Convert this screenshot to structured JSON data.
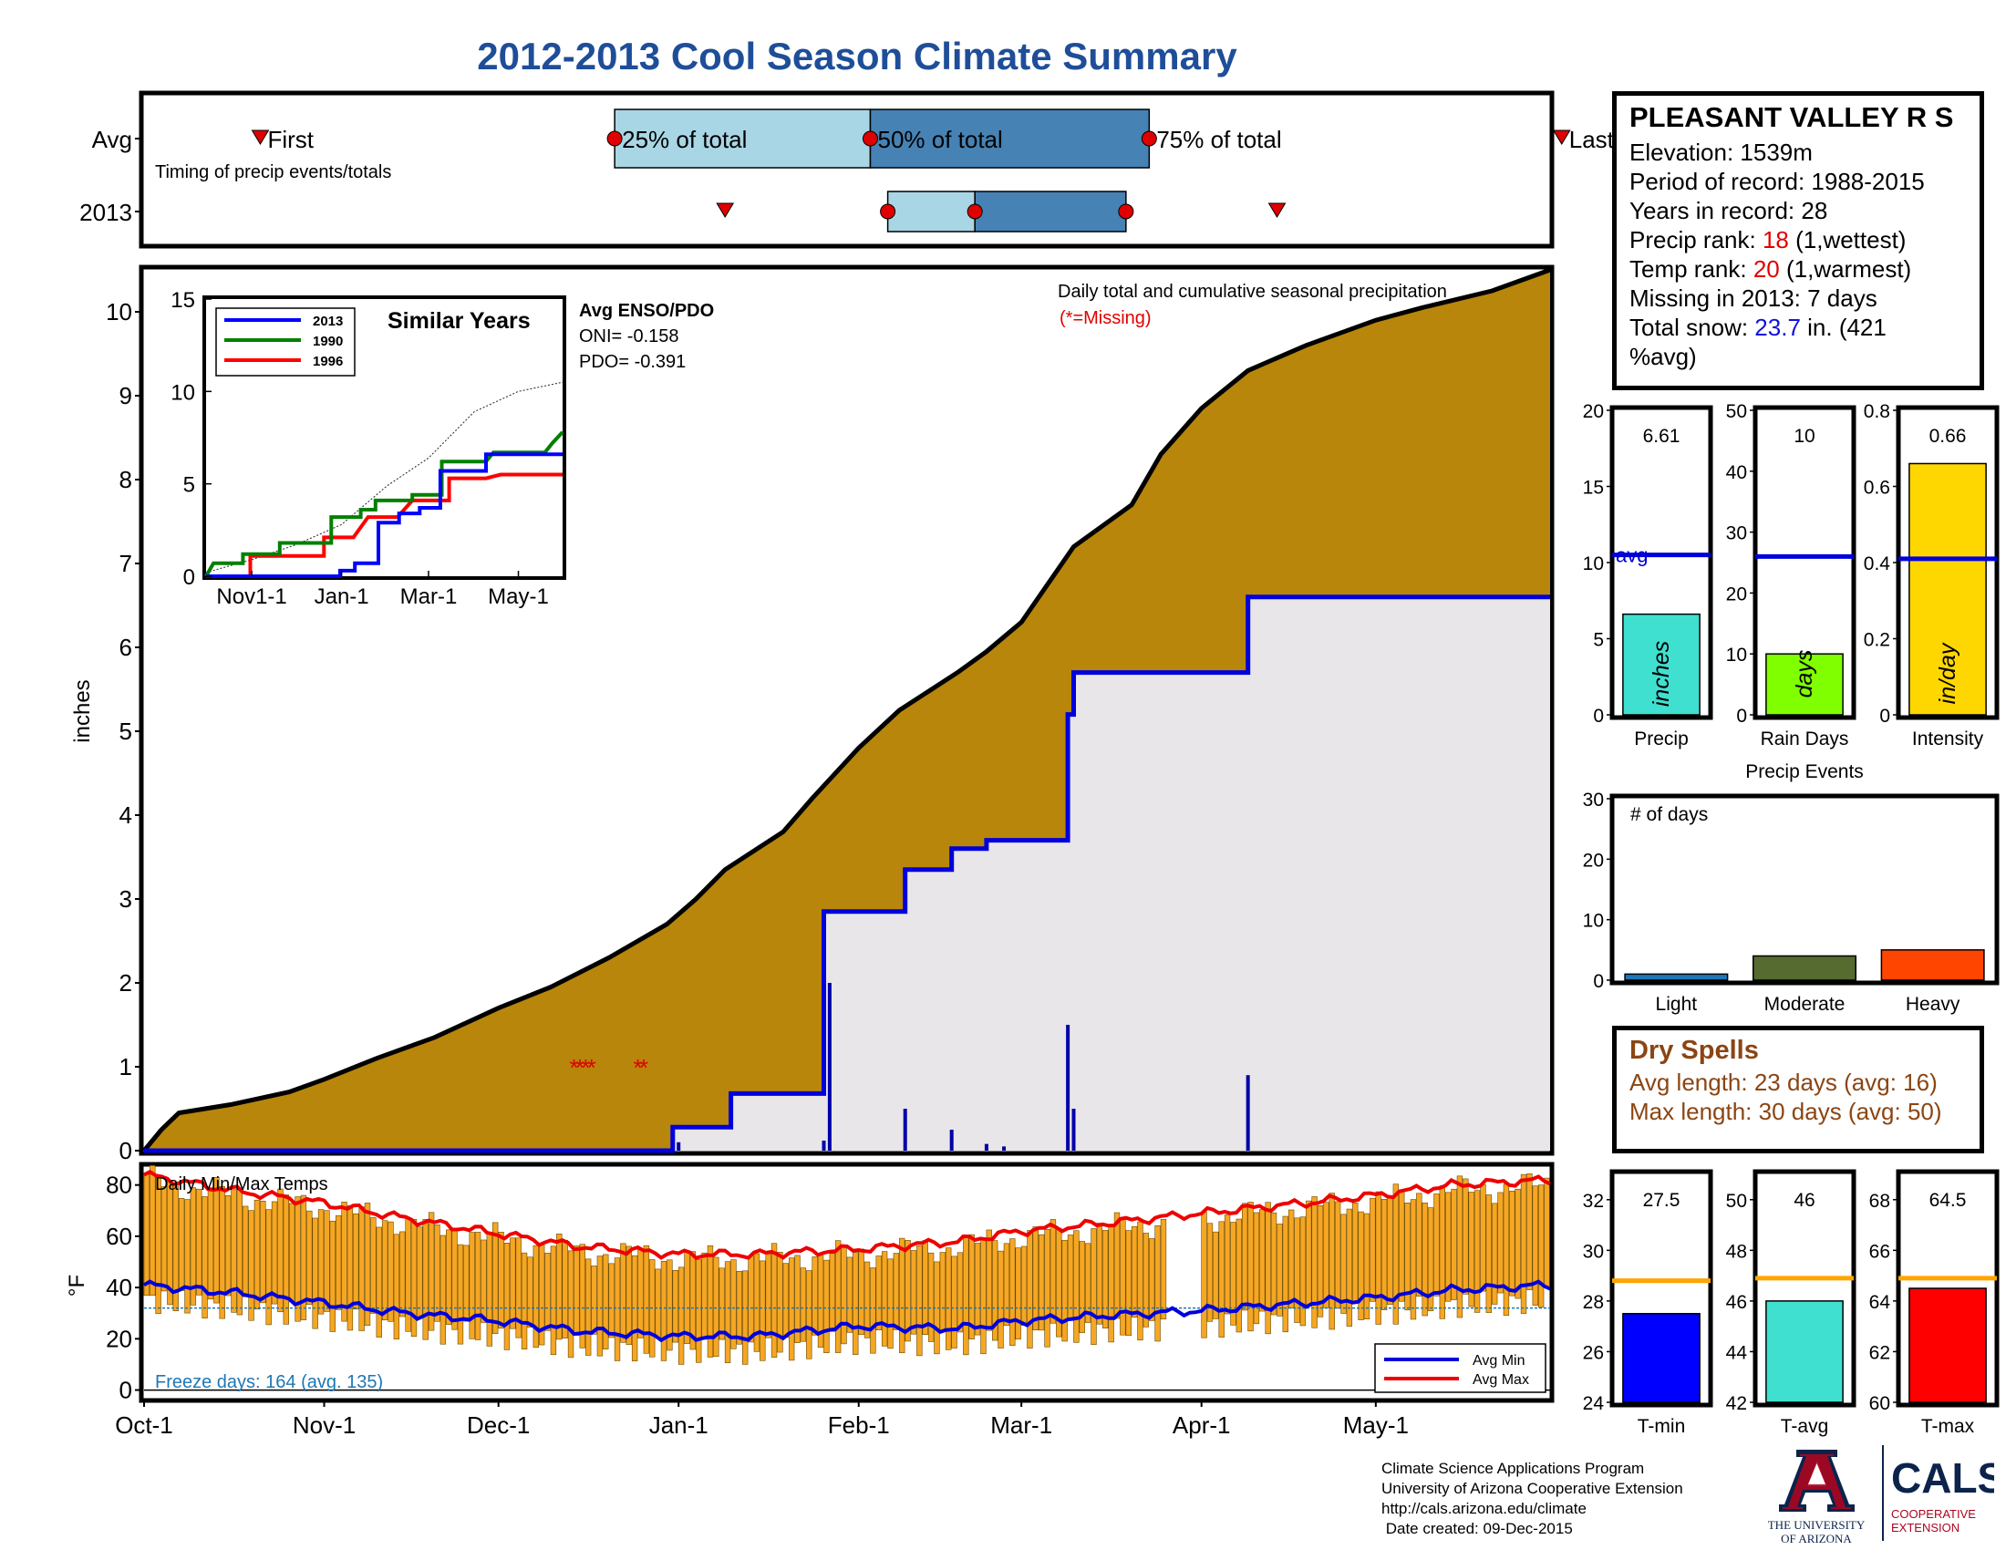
{
  "page": {
    "title": "2012-2013 Cool Season Climate Summary"
  },
  "timing_panel": {
    "row_labels": [
      "Avg",
      "2013"
    ],
    "markers_text": {
      "first": "First",
      "p25": "25% of total",
      "p50": "50% of total",
      "p75": "75% of total",
      "last": "Last"
    },
    "caption": "Timing of precip events/totals",
    "avg": {
      "first_day": 20,
      "p25_day": 81,
      "p50_day": 125,
      "p75_day": 173,
      "last_day": 244
    },
    "y2013": {
      "first_day": 100,
      "p25_day": 128,
      "p50_day": 143,
      "p75_day": 169,
      "last_day": 195
    },
    "colors": {
      "light": "#a9d6e5",
      "dark": "#4682b4",
      "dot": "#e00000",
      "triangle": "#e00000"
    }
  },
  "station": {
    "name": "PLEASANT VALLEY R S",
    "elevation": "Elevation: 1539m",
    "period": "Period of record: 1988-2015",
    "years": "Years in record: 28",
    "precip_rank_label": "Precip rank: ",
    "precip_rank_value": "18",
    "precip_rank_note": " (1,wettest)",
    "temp_rank_label": "Temp rank: ",
    "temp_rank_value": "20",
    "temp_rank_note": " (1,warmest)",
    "missing": "Missing in 2013: 7 days",
    "snow_label": "Total snow: ",
    "snow_value": "23.7",
    "snow_note_1": " in. (421",
    "snow_note_2": "%avg)"
  },
  "chart_data": [
    {
      "id": "cumulative-precip",
      "type": "area",
      "title": "Daily total and cumulative seasonal precipitation",
      "subtitle": "(*=Missing)",
      "ylabel": "inches",
      "ylim": [
        0,
        10.5
      ],
      "yticks": [
        0,
        1,
        2,
        3,
        4,
        5,
        6,
        7,
        8,
        9,
        10
      ],
      "x_tick_labels": [
        "Oct-1",
        "Nov-1",
        "Dec-1",
        "Jan-1",
        "Feb-1",
        "Mar-1",
        "Apr-1",
        "May-1"
      ],
      "x_tick_days": [
        0,
        31,
        61,
        92,
        123,
        151,
        182,
        212
      ],
      "x_range_days": [
        0,
        242
      ],
      "avg_cumulative": [
        [
          0,
          0
        ],
        [
          3,
          0.25
        ],
        [
          6,
          0.45
        ],
        [
          15,
          0.55
        ],
        [
          25,
          0.7
        ],
        [
          31,
          0.85
        ],
        [
          40,
          1.1
        ],
        [
          50,
          1.35
        ],
        [
          61,
          1.7
        ],
        [
          70,
          1.95
        ],
        [
          80,
          2.3
        ],
        [
          90,
          2.7
        ],
        [
          95,
          3.0
        ],
        [
          100,
          3.35
        ],
        [
          110,
          3.8
        ],
        [
          115,
          4.2
        ],
        [
          123,
          4.8
        ],
        [
          130,
          5.25
        ],
        [
          140,
          5.7
        ],
        [
          145,
          5.95
        ],
        [
          151,
          6.3
        ],
        [
          160,
          7.2
        ],
        [
          170,
          7.7
        ],
        [
          175,
          8.3
        ],
        [
          182,
          8.85
        ],
        [
          190,
          9.3
        ],
        [
          200,
          9.6
        ],
        [
          212,
          9.9
        ],
        [
          220,
          10.05
        ],
        [
          232,
          10.25
        ],
        [
          242,
          10.5
        ]
      ],
      "y2013_cumulative": [
        [
          0,
          0
        ],
        [
          91,
          0
        ],
        [
          91,
          0.28
        ],
        [
          101,
          0.28
        ],
        [
          101,
          0.68
        ],
        [
          117,
          0.68
        ],
        [
          117,
          2.85
        ],
        [
          131,
          2.85
        ],
        [
          131,
          3.35
        ],
        [
          139,
          3.35
        ],
        [
          139,
          3.6
        ],
        [
          145,
          3.6
        ],
        [
          145,
          3.7
        ],
        [
          159,
          3.7
        ],
        [
          159,
          5.2
        ],
        [
          160,
          5.2
        ],
        [
          160,
          5.7
        ],
        [
          190,
          5.7
        ],
        [
          190,
          6.6
        ],
        [
          242,
          6.6
        ]
      ],
      "daily_bars": [
        [
          92,
          0.1
        ],
        [
          117,
          0.12
        ],
        [
          118,
          2.0
        ],
        [
          131,
          0.5
        ],
        [
          139,
          0.25
        ],
        [
          145,
          0.08
        ],
        [
          148,
          0.05
        ],
        [
          159,
          1.5
        ],
        [
          160,
          0.5
        ],
        [
          190,
          0.9
        ]
      ],
      "missing_marks": [
        [
          74,
          1.0
        ],
        [
          75,
          1.0
        ],
        [
          76,
          1.0
        ],
        [
          77,
          1.0
        ],
        [
          85,
          1.0
        ],
        [
          86,
          1.0
        ]
      ],
      "colors": {
        "avg_fill": "#b8860b",
        "y2013_fill": "#e8e6e8",
        "y2013_line": "#0000dd"
      }
    },
    {
      "id": "similar-years",
      "type": "line",
      "title": "Similar Years",
      "ylim": [
        0,
        15
      ],
      "yticks": [
        0,
        5,
        10,
        15
      ],
      "x_tick_labels": [
        "Nov1-1",
        "Jan-1",
        "Mar-1",
        "May-1"
      ],
      "x_tick_days": [
        31,
        92,
        151,
        212
      ],
      "x_range_days": [
        0,
        242
      ],
      "series": [
        {
          "name": "2013",
          "color": "#0000ff",
          "points": [
            [
              0,
              0
            ],
            [
              91,
              0
            ],
            [
              91,
              0.3
            ],
            [
              101,
              0.3
            ],
            [
              101,
              0.7
            ],
            [
              117,
              0.7
            ],
            [
              117,
              2.9
            ],
            [
              131,
              2.9
            ],
            [
              131,
              3.4
            ],
            [
              145,
              3.4
            ],
            [
              145,
              3.7
            ],
            [
              159,
              3.7
            ],
            [
              159,
              5.7
            ],
            [
              190,
              5.7
            ],
            [
              190,
              6.6
            ],
            [
              242,
              6.6
            ]
          ]
        },
        {
          "name": "1990",
          "color": "#008000",
          "points": [
            [
              0,
              0
            ],
            [
              5,
              0.7
            ],
            [
              25,
              0.7
            ],
            [
              25,
              1.2
            ],
            [
              50,
              1.2
            ],
            [
              50,
              1.8
            ],
            [
              85,
              1.8
            ],
            [
              85,
              3.2
            ],
            [
              105,
              3.2
            ],
            [
              105,
              3.6
            ],
            [
              115,
              3.6
            ],
            [
              115,
              4.1
            ],
            [
              140,
              4.1
            ],
            [
              140,
              4.4
            ],
            [
              160,
              4.4
            ],
            [
              160,
              6.2
            ],
            [
              190,
              6.2
            ],
            [
              195,
              6.7
            ],
            [
              230,
              6.7
            ],
            [
              235,
              7.2
            ],
            [
              242,
              7.8
            ]
          ]
        },
        {
          "name": "1996",
          "color": "#ff0000",
          "points": [
            [
              0,
              0
            ],
            [
              30,
              0
            ],
            [
              30,
              1.1
            ],
            [
              80,
              1.1
            ],
            [
              80,
              2.1
            ],
            [
              100,
              2.1
            ],
            [
              110,
              3.2
            ],
            [
              130,
              3.2
            ],
            [
              140,
              4.1
            ],
            [
              165,
              4.1
            ],
            [
              165,
              5.3
            ],
            [
              190,
              5.3
            ],
            [
              200,
              5.5
            ],
            [
              242,
              5.5
            ]
          ]
        }
      ],
      "avg_series": {
        "name": "average",
        "color": "#222222",
        "points": [
          [
            0,
            0.2
          ],
          [
            31,
            0.9
          ],
          [
            61,
            1.7
          ],
          [
            92,
            2.8
          ],
          [
            123,
            4.9
          ],
          [
            151,
            6.4
          ],
          [
            182,
            8.9
          ],
          [
            212,
            10.0
          ],
          [
            242,
            10.5
          ]
        ]
      }
    },
    {
      "id": "daily-temps",
      "type": "bar",
      "title": "Daily Min/Max Temps",
      "ylabel": "°F",
      "ylim": [
        -3,
        87
      ],
      "yticks": [
        0,
        20,
        40,
        60,
        80
      ],
      "x_tick_labels": [
        "Oct-1",
        "Nov-1",
        "Dec-1",
        "Jan-1",
        "Feb-1",
        "Mar-1",
        "Apr-1",
        "May-1"
      ],
      "x_tick_days": [
        0,
        31,
        61,
        92,
        123,
        151,
        182,
        212
      ],
      "x_range_days": [
        0,
        242
      ],
      "freeze_line_value": 32,
      "avg_min_points": [
        [
          0,
          41
        ],
        [
          15,
          38
        ],
        [
          31,
          34
        ],
        [
          45,
          30
        ],
        [
          61,
          27
        ],
        [
          75,
          23
        ],
        [
          92,
          21
        ],
        [
          105,
          21
        ],
        [
          123,
          25
        ],
        [
          140,
          24
        ],
        [
          151,
          27
        ],
        [
          165,
          29
        ],
        [
          182,
          31
        ],
        [
          200,
          34
        ],
        [
          212,
          36
        ],
        [
          225,
          39
        ],
        [
          242,
          41
        ]
      ],
      "avg_max_points": [
        [
          0,
          84
        ],
        [
          15,
          78
        ],
        [
          31,
          73
        ],
        [
          45,
          67
        ],
        [
          61,
          61
        ],
        [
          75,
          56
        ],
        [
          92,
          53
        ],
        [
          105,
          53
        ],
        [
          123,
          55
        ],
        [
          140,
          58
        ],
        [
          151,
          62
        ],
        [
          165,
          65
        ],
        [
          182,
          69
        ],
        [
          200,
          73
        ],
        [
          212,
          76
        ],
        [
          225,
          80
        ],
        [
          242,
          82
        ]
      ],
      "legend": [
        "Avg Min",
        "Avg Max"
      ],
      "colors": {
        "bar": "#f5a623",
        "bar_edge": "#6b4a00",
        "avg_min": "#0000dd",
        "avg_max": "#ee0000",
        "freeze": "#1f77b4"
      }
    },
    {
      "id": "precip-total",
      "type": "bar",
      "ylim": [
        0,
        20
      ],
      "yticks": [
        0,
        5,
        10,
        15,
        20
      ],
      "categories": [
        "Precip"
      ],
      "values": [
        6.61
      ],
      "value_label": "6.61",
      "average": 10.5,
      "avg_label": "avg",
      "bar_text": "inches",
      "color": "#40e0d0"
    },
    {
      "id": "rain-days",
      "type": "bar",
      "ylim": [
        0,
        50
      ],
      "yticks": [
        0,
        10,
        20,
        30,
        40,
        50
      ],
      "categories": [
        "Rain Days"
      ],
      "values": [
        10
      ],
      "value_label": "10",
      "average": 26,
      "bar_text": "days",
      "color": "#80ff00"
    },
    {
      "id": "intensity",
      "type": "bar",
      "ylim": [
        0,
        0.8
      ],
      "yticks": [
        0,
        0.2,
        0.4,
        0.6,
        0.8
      ],
      "categories": [
        "Intensity"
      ],
      "values": [
        0.66
      ],
      "value_label": "0.66",
      "average": 0.41,
      "bar_text": "in/day",
      "color": "#ffd700"
    },
    {
      "id": "precip-events",
      "type": "bar",
      "title": "Precip Events",
      "note": "# of days",
      "ylim": [
        0,
        30
      ],
      "yticks": [
        0,
        10,
        20,
        30
      ],
      "categories": [
        "Light",
        "Moderate",
        "Heavy"
      ],
      "values": [
        1,
        4,
        5
      ],
      "colors": [
        "#1f77b4",
        "#556b2f",
        "#ff4500"
      ]
    },
    {
      "id": "t-min",
      "type": "bar",
      "ylim": [
        24,
        33
      ],
      "yticks": [
        24,
        26,
        28,
        30,
        32
      ],
      "categories": [
        "T-min"
      ],
      "values": [
        27.5
      ],
      "value_label": "27.5",
      "average": 28.8,
      "color": "#0000ff"
    },
    {
      "id": "t-avg",
      "type": "bar",
      "ylim": [
        42,
        51
      ],
      "yticks": [
        42,
        44,
        46,
        48,
        50
      ],
      "categories": [
        "T-avg"
      ],
      "values": [
        46
      ],
      "value_label": "46",
      "average": 46.9,
      "color": "#40e0d0"
    },
    {
      "id": "t-max",
      "type": "bar",
      "ylim": [
        60,
        69
      ],
      "yticks": [
        60,
        62,
        64,
        66,
        68
      ],
      "categories": [
        "T-max"
      ],
      "values": [
        64.5
      ],
      "value_label": "64.5",
      "average": 64.9,
      "color": "#ff0000"
    }
  ],
  "enso": {
    "title": "Avg ENSO/PDO",
    "oni": "ONI= -0.158",
    "pdo": "PDO= -0.391"
  },
  "freeze": {
    "text": "Freeze days: 164 (avg. 135)"
  },
  "dry_spells": {
    "title": "Dry Spells",
    "avg_length": "Avg length: 23 days (avg: 16)",
    "max_length": "Max length: 30 days (avg: 50)"
  },
  "credits": {
    "line1": "Climate Science Applications Program",
    "line2": "University of Arizona Cooperative Extension",
    "line3": "http://cals.arizona.edu/climate",
    "line4": " Date created: 09-Dec-2015"
  },
  "logos": {
    "ua_line1": "THE UNIVERSITY",
    "ua_line2": "OF ARIZONA",
    "cals": "CALS",
    "cals_line1": "COOPERATIVE",
    "cals_line2": "EXTENSION"
  }
}
